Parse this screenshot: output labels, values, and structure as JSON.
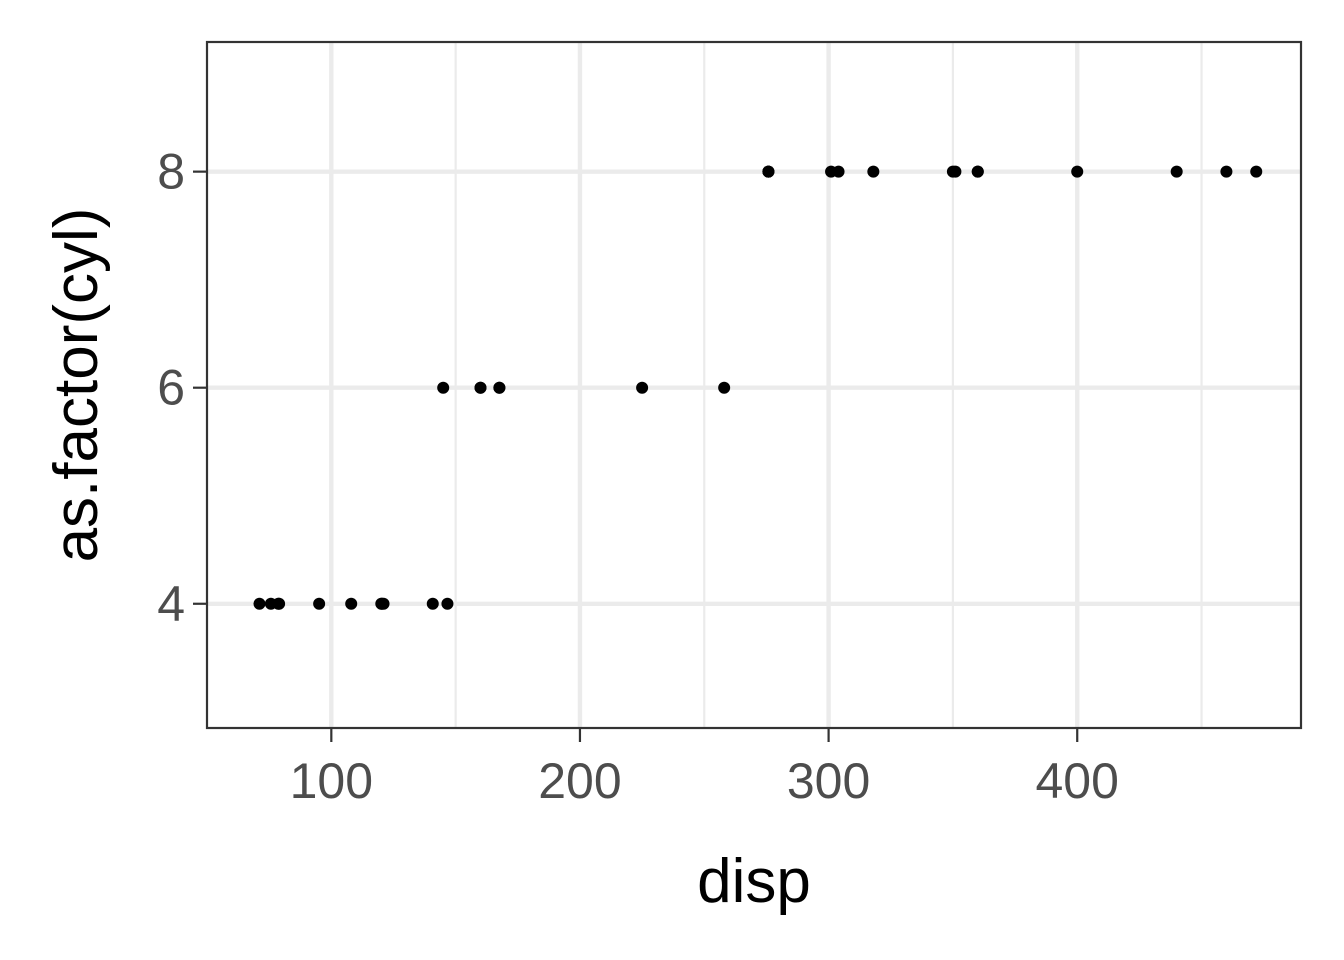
{
  "chart_data": {
    "type": "scatter",
    "title": "",
    "xlabel": "disp",
    "ylabel": "as.factor(cyl)",
    "xlim": [
      50,
      490
    ],
    "ylim": [
      2.85,
      9.2
    ],
    "x_ticks": [
      100,
      200,
      300,
      400
    ],
    "x_minor_ticks": [
      150,
      250,
      350,
      450
    ],
    "y_ticks": [
      4,
      6,
      8
    ],
    "grid": true,
    "legend": "none",
    "colors": {
      "point": "#000000",
      "grid": "#ebebeb",
      "panel_border": "#333333",
      "tick_label": "#4d4d4d"
    },
    "points": [
      {
        "x": 71.1,
        "y": 4
      },
      {
        "x": 75.7,
        "y": 4
      },
      {
        "x": 78.7,
        "y": 4
      },
      {
        "x": 79.0,
        "y": 4
      },
      {
        "x": 95.1,
        "y": 4
      },
      {
        "x": 108.0,
        "y": 4
      },
      {
        "x": 120.1,
        "y": 4
      },
      {
        "x": 120.3,
        "y": 4
      },
      {
        "x": 121.0,
        "y": 4
      },
      {
        "x": 140.8,
        "y": 4
      },
      {
        "x": 146.7,
        "y": 4
      },
      {
        "x": 145.0,
        "y": 6
      },
      {
        "x": 160.0,
        "y": 6
      },
      {
        "x": 160.0,
        "y": 6
      },
      {
        "x": 167.6,
        "y": 6
      },
      {
        "x": 167.6,
        "y": 6
      },
      {
        "x": 225.0,
        "y": 6
      },
      {
        "x": 258.0,
        "y": 6
      },
      {
        "x": 275.8,
        "y": 8
      },
      {
        "x": 275.8,
        "y": 8
      },
      {
        "x": 275.8,
        "y": 8
      },
      {
        "x": 301.0,
        "y": 8
      },
      {
        "x": 304.0,
        "y": 8
      },
      {
        "x": 318.0,
        "y": 8
      },
      {
        "x": 350.0,
        "y": 8
      },
      {
        "x": 351.0,
        "y": 8
      },
      {
        "x": 360.0,
        "y": 8
      },
      {
        "x": 360.0,
        "y": 8
      },
      {
        "x": 400.0,
        "y": 8
      },
      {
        "x": 440.0,
        "y": 8
      },
      {
        "x": 460.0,
        "y": 8
      },
      {
        "x": 472.0,
        "y": 8
      }
    ]
  }
}
